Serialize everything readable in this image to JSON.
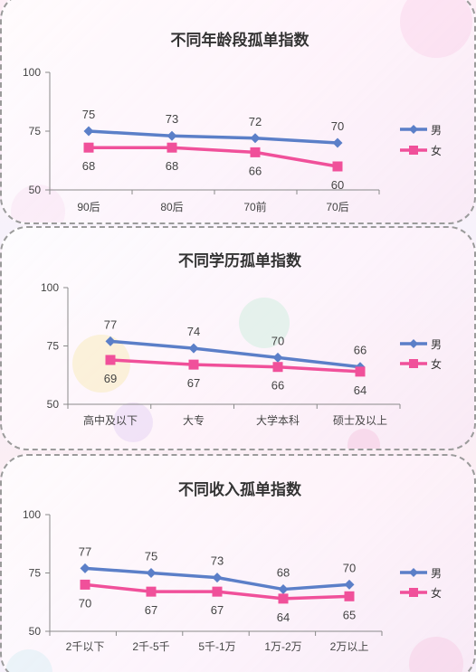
{
  "chart_data": [
    {
      "type": "line",
      "title": "不同年龄段孤单指数",
      "categories": [
        "90后",
        "80后",
        "70前",
        "70后"
      ],
      "series": [
        {
          "name": "男",
          "values": [
            75,
            73,
            72,
            70
          ],
          "color": "#5b7fc8"
        },
        {
          "name": "女",
          "values": [
            68,
            68,
            66,
            60
          ],
          "color": "#f0509a"
        }
      ],
      "ylim": [
        50,
        100
      ],
      "yticks": [
        "100",
        "75",
        "50"
      ],
      "legend": "right"
    },
    {
      "type": "line",
      "title": "不同学历孤单指数",
      "categories": [
        "高中及以下",
        "大专",
        "大学本科",
        "硕士及以上"
      ],
      "series": [
        {
          "name": "男",
          "values": [
            77,
            74,
            70,
            66
          ],
          "color": "#5b7fc8"
        },
        {
          "name": "女",
          "values": [
            69,
            67,
            66,
            64
          ],
          "color": "#f0509a"
        }
      ],
      "ylim": [
        50,
        100
      ],
      "yticks": [
        "100",
        "75",
        "50"
      ],
      "legend": "right"
    },
    {
      "type": "line",
      "title": "不同收入孤单指数",
      "categories": [
        "2千以下",
        "2千-5千",
        "5千-1万",
        "1万-2万",
        "2万以上"
      ],
      "series": [
        {
          "name": "男",
          "values": [
            77,
            75,
            73,
            68,
            70
          ],
          "color": "#5b7fc8"
        },
        {
          "name": "女",
          "values": [
            70,
            67,
            67,
            64,
            65
          ],
          "color": "#f0509a"
        }
      ],
      "ylim": [
        50,
        100
      ],
      "yticks": [
        "100",
        "75",
        "50"
      ],
      "legend": "right"
    }
  ]
}
